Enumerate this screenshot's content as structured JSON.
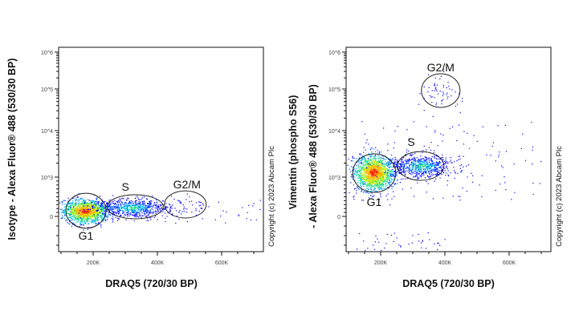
{
  "chart_data": [
    {
      "type": "scatter",
      "subtype": "flow cytometry density dot plot",
      "xlabel": "DRAQ5 (720/30 BP)",
      "ylabel_lines": [
        "Isotype - Alexa Fluor® 488 (530/30 BP)"
      ],
      "xlim": [
        90,
        730
      ],
      "x_unit": "K",
      "x_ticks": [
        "200K",
        "400K",
        "600K"
      ],
      "y_scale": "logicle",
      "y_ticks": [
        "10^6",
        "10^5",
        "10^4",
        "10^3",
        "0"
      ],
      "copyright": "Copyright (c) 2023 Abcam Plc",
      "gates": [
        {
          "name": "G1",
          "x": [
            115,
            240
          ],
          "y": [
            -300,
            590
          ]
        },
        {
          "name": "S",
          "x": [
            243,
            418
          ],
          "y": [
            -60,
            550
          ]
        },
        {
          "name": "G2/M",
          "x": [
            422,
            552
          ],
          "y": [
            -40,
            650
          ]
        }
      ]
    },
    {
      "type": "scatter",
      "subtype": "flow cytometry density dot plot",
      "xlabel": "DRAQ5 (720/30 BP)",
      "ylabel_lines": [
        "Vimentin (phospho S56)",
        "- Alexa Fluor® 488 (530/30 BP)"
      ],
      "xlim": [
        90,
        730
      ],
      "x_unit": "K",
      "x_ticks": [
        "200K",
        "400K",
        "600K"
      ],
      "y_scale": "logicle",
      "y_ticks": [
        "10^6",
        "10^5",
        "10^4",
        "10^3",
        "0"
      ],
      "copyright": "Copyright (c) 2023 Abcam Plc",
      "gates": [
        {
          "name": "G1",
          "x": [
            113,
            247
          ],
          "y": [
            612,
            3160
          ]
        },
        {
          "name": "S",
          "x": [
            253,
            397
          ],
          "y": [
            918,
            3550
          ]
        },
        {
          "name": "G2/M",
          "x": [
            327,
            447
          ],
          "y": [
            36000,
            259000
          ]
        }
      ]
    }
  ],
  "colors": {
    "density_low": "#0000ff",
    "density_mid": "#00e0e0",
    "density_midhigh": "#40e040",
    "density_high": "#ffff00",
    "density_peak": "#ff2000",
    "gate": "#222222"
  }
}
